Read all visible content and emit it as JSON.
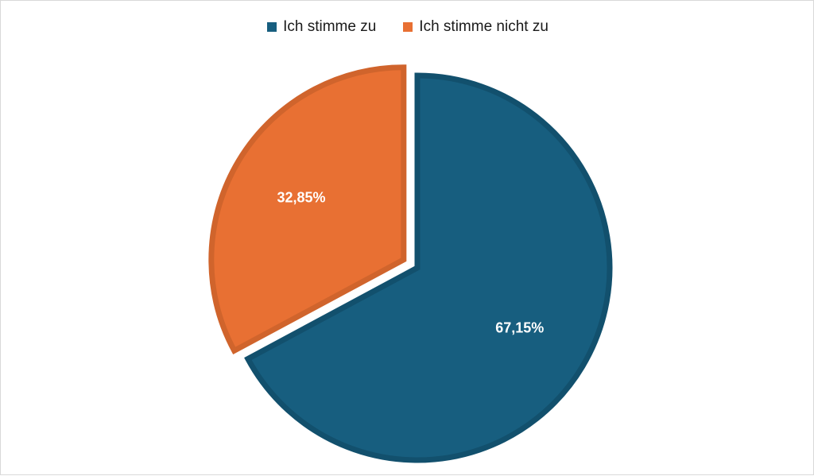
{
  "chart_data": {
    "type": "pie",
    "slices": [
      {
        "name": "Ich stimme zu",
        "value": 67.15,
        "label": "67,15%",
        "color": "#175e7f",
        "stroke": "#12506d",
        "exploded": false
      },
      {
        "name": "Ich stimme nicht zu",
        "value": 32.85,
        "label": "32,85%",
        "color": "#e87033",
        "stroke": "#d0642c",
        "exploded": true
      }
    ],
    "legend": {
      "position": "top"
    }
  }
}
